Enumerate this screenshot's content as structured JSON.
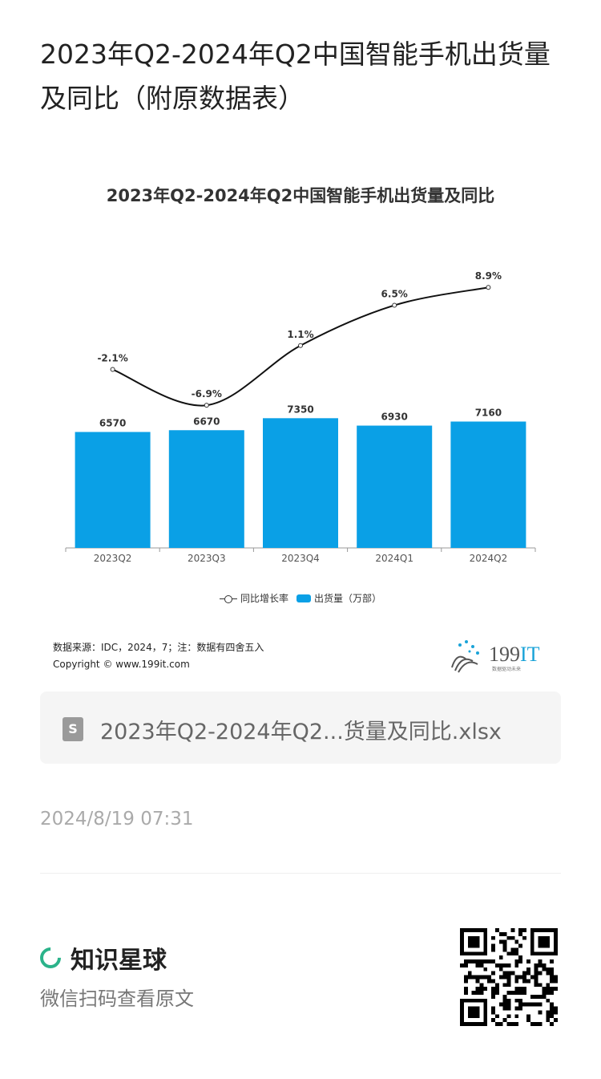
{
  "header": {
    "title": "2023年Q2-2024年Q2中国智能手机出货量及同比（附原数据表）"
  },
  "chart_data": {
    "type": "bar+line",
    "title": "2023年Q2-2024年Q2中国智能手机出货量及同比",
    "categories": [
      "2023Q2",
      "2023Q3",
      "2023Q4",
      "2024Q1",
      "2024Q2"
    ],
    "series": [
      {
        "name": "出货量（万部）",
        "type": "bar",
        "values": [
          6570,
          6670,
          7350,
          6930,
          7160
        ],
        "labels": [
          "6570",
          "6670",
          "7350",
          "6930",
          "7160"
        ],
        "color": "#0aa0e6"
      },
      {
        "name": "同比增长率",
        "type": "line",
        "values": [
          -2.1,
          -6.9,
          1.1,
          6.5,
          8.9
        ],
        "labels": [
          "-2.1%",
          "-6.9%",
          "1.1%",
          "6.5%",
          "8.9%"
        ],
        "color": "#111111"
      }
    ],
    "ylim": [
      0,
      10000
    ],
    "y2lim": [
      -20,
      10
    ],
    "grid": false,
    "legend_position": "bottom",
    "legend": {
      "line": "同比增长率",
      "bar": "出货量（万部）"
    }
  },
  "source": {
    "line1": "数据来源：IDC，2024，7；注：数据有四舍五入",
    "line2": "Copyright © www.199it.com",
    "logo": "199IT",
    "logo_sub": "数据驱动未来"
  },
  "file": {
    "name": "2023年Q2-2024年Q2...货量及同比.xlsx",
    "icon": "spreadsheet-icon"
  },
  "date": "2024/8/19 07:31",
  "footer": {
    "brand": "知识星球",
    "scan": "微信扫码查看原文",
    "accent": "#2bb38a"
  }
}
